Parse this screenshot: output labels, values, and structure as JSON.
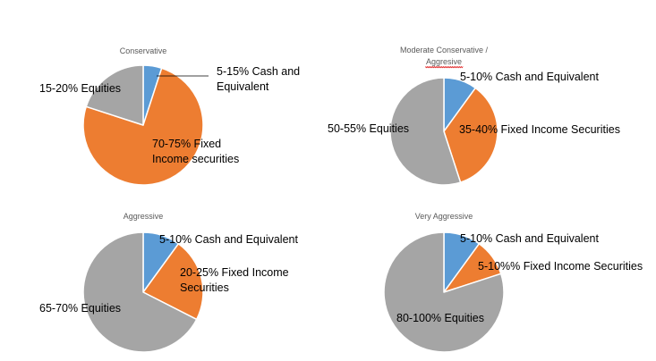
{
  "colors": {
    "cash": "#5B9BD5",
    "fixed": "#ED7D31",
    "equities": "#A5A5A5"
  },
  "chart_data": [
    {
      "type": "pie",
      "title": "Conservative",
      "slices": [
        {
          "name": "Cash and Equivalent",
          "value": 5,
          "label": [
            "5-15% Cash and",
            "Equivalent"
          ]
        },
        {
          "name": "Fixed Income",
          "value": 75,
          "label": [
            "70-75% Fixed",
            "Income securities"
          ]
        },
        {
          "name": "Equities",
          "value": 20,
          "label": [
            "15-20% Equities"
          ]
        }
      ]
    },
    {
      "type": "pie",
      "title": "Moderate Conservative / Aggresive",
      "slices": [
        {
          "name": "Cash and Equivalent",
          "value": 10,
          "label": [
            "5-10% Cash and Equivalent"
          ]
        },
        {
          "name": "Fixed Income",
          "value": 35,
          "label": [
            "35-40% Fixed Income Securities"
          ]
        },
        {
          "name": "Equities",
          "value": 55,
          "label": [
            "50-55% Equities"
          ]
        }
      ]
    },
    {
      "type": "pie",
      "title": "Aggressive",
      "slices": [
        {
          "name": "Cash and Equivalent",
          "value": 10,
          "label": [
            "5-10% Cash and Equivalent"
          ]
        },
        {
          "name": "Fixed Income",
          "value": 22.5,
          "label": [
            "20-25% Fixed Income",
            "Securities"
          ]
        },
        {
          "name": "Equities",
          "value": 67.5,
          "label": [
            "65-70% Equities"
          ]
        }
      ]
    },
    {
      "type": "pie",
      "title": "Very Aggressive",
      "slices": [
        {
          "name": "Cash and Equivalent",
          "value": 10,
          "label": [
            "5-10% Cash and Equivalent"
          ]
        },
        {
          "name": "Fixed Income",
          "value": 10,
          "label": [
            "5-10%% Fixed Income Securities"
          ]
        },
        {
          "name": "Equities",
          "value": 80,
          "label": [
            "80-100% Equities"
          ]
        }
      ]
    }
  ]
}
